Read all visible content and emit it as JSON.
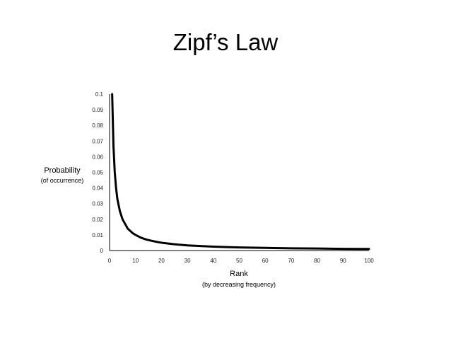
{
  "slide": {
    "title": "Zipf’s Law"
  },
  "chart_data": {
    "type": "line",
    "title": "Zipf’s Law",
    "xlabel": "Rank",
    "xlabel_sub": "(by decreasing frequency)",
    "ylabel": "Probability",
    "ylabel_sub": "(of occurrence)",
    "xlim": [
      0,
      100
    ],
    "ylim": [
      0,
      0.1
    ],
    "x_ticks": [
      "0",
      "10",
      "20",
      "30",
      "40",
      "50",
      "60",
      "70",
      "80",
      "90",
      "100"
    ],
    "y_ticks": [
      "0",
      "0.01",
      "0.02",
      "0.03",
      "0.04",
      "0.05",
      "0.06",
      "0.07",
      "0.08",
      "0.09",
      "0.1"
    ],
    "grid": false,
    "legend": "none",
    "line_color": "#000000",
    "series": [
      {
        "x": [
          1,
          1.5,
          2,
          2.5,
          3,
          3.5,
          4,
          5,
          6,
          7,
          8,
          9,
          10,
          12,
          14,
          16,
          18,
          20,
          25,
          30,
          35,
          40,
          45,
          50,
          60,
          70,
          80,
          90,
          100
        ],
        "values": [
          0.1,
          0.067,
          0.05,
          0.04,
          0.033,
          0.029,
          0.025,
          0.02,
          0.017,
          0.014,
          0.0125,
          0.011,
          0.01,
          0.0083,
          0.0071,
          0.0063,
          0.0056,
          0.005,
          0.004,
          0.0033,
          0.0029,
          0.0025,
          0.0022,
          0.002,
          0.0017,
          0.0014,
          0.0013,
          0.0011,
          0.001
        ]
      }
    ]
  }
}
